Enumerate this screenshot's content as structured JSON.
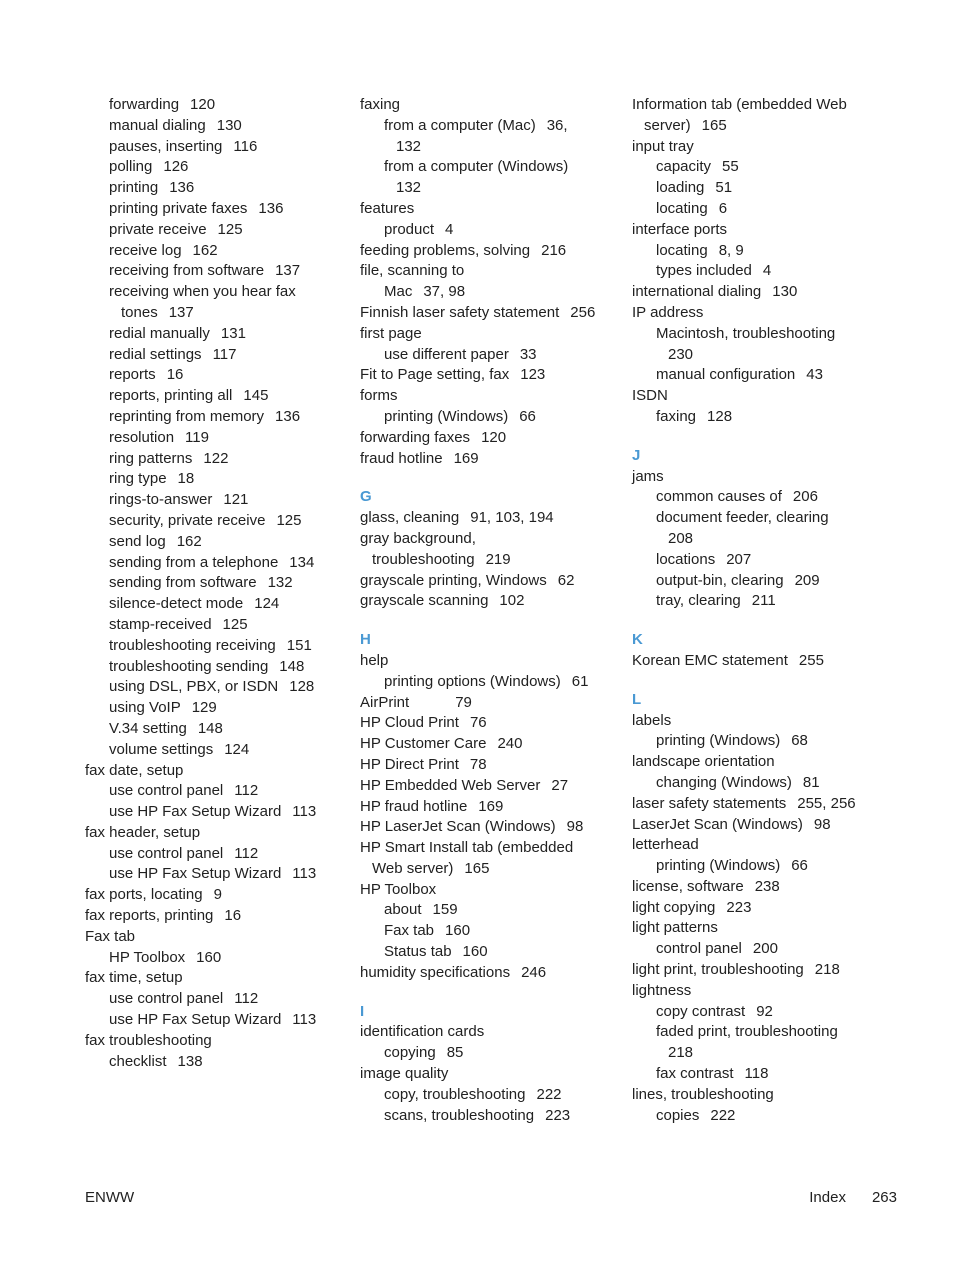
{
  "document": {
    "kind": "printer manual index page",
    "accent_color": "#4a99d3",
    "text_color": "#212121"
  },
  "footer": {
    "left": "ENWW",
    "index_label": "Index",
    "page_number": "263"
  },
  "columns": [
    {
      "lines": [
        {
          "t": "e",
          "i": 1,
          "l": "forwarding",
          "p": "120"
        },
        {
          "t": "e",
          "i": 1,
          "l": "manual dialing",
          "p": "130"
        },
        {
          "t": "e",
          "i": 1,
          "l": "pauses, inserting",
          "p": "116"
        },
        {
          "t": "e",
          "i": 1,
          "l": "polling",
          "p": "126"
        },
        {
          "t": "e",
          "i": 1,
          "l": "printing",
          "p": "136"
        },
        {
          "t": "e",
          "i": 1,
          "l": "printing private faxes",
          "p": "136"
        },
        {
          "t": "e",
          "i": 1,
          "l": "private receive",
          "p": "125"
        },
        {
          "t": "e",
          "i": 1,
          "l": "receive log",
          "p": "162"
        },
        {
          "t": "e",
          "i": 1,
          "l": "receiving from software",
          "p": "137"
        },
        {
          "t": "e",
          "i": 1,
          "l": "receiving when you hear fax",
          "p": ""
        },
        {
          "t": "e",
          "i": 1,
          "h": true,
          "l": "tones",
          "p": "137"
        },
        {
          "t": "e",
          "i": 1,
          "l": "redial manually",
          "p": "131"
        },
        {
          "t": "e",
          "i": 1,
          "l": "redial settings",
          "p": "117"
        },
        {
          "t": "e",
          "i": 1,
          "l": "reports",
          "p": "16"
        },
        {
          "t": "e",
          "i": 1,
          "l": "reports, printing all",
          "p": "145"
        },
        {
          "t": "e",
          "i": 1,
          "l": "reprinting from memory",
          "p": "136"
        },
        {
          "t": "e",
          "i": 1,
          "l": "resolution",
          "p": "119"
        },
        {
          "t": "e",
          "i": 1,
          "l": "ring patterns",
          "p": "122"
        },
        {
          "t": "e",
          "i": 1,
          "l": "ring type",
          "p": "18"
        },
        {
          "t": "e",
          "i": 1,
          "l": "rings-to-answer",
          "p": "121"
        },
        {
          "t": "e",
          "i": 1,
          "l": "security, private receive",
          "p": "125"
        },
        {
          "t": "e",
          "i": 1,
          "l": "send log",
          "p": "162"
        },
        {
          "t": "e",
          "i": 1,
          "l": "sending from a telephone",
          "p": "134"
        },
        {
          "t": "e",
          "i": 1,
          "l": "sending from software",
          "p": "132"
        },
        {
          "t": "e",
          "i": 1,
          "l": "silence-detect mode",
          "p": "124"
        },
        {
          "t": "e",
          "i": 1,
          "l": "stamp-received",
          "p": "125"
        },
        {
          "t": "e",
          "i": 1,
          "l": "troubleshooting receiving",
          "p": "151"
        },
        {
          "t": "e",
          "i": 1,
          "l": "troubleshooting sending",
          "p": "148"
        },
        {
          "t": "e",
          "i": 1,
          "l": "using DSL, PBX, or ISDN",
          "p": "128"
        },
        {
          "t": "e",
          "i": 1,
          "l": "using VoIP",
          "p": "129"
        },
        {
          "t": "e",
          "i": 1,
          "l": "V.34 setting",
          "p": "148"
        },
        {
          "t": "e",
          "i": 1,
          "l": "volume settings",
          "p": "124"
        },
        {
          "t": "e",
          "i": 0,
          "l": "fax date, setup",
          "p": ""
        },
        {
          "t": "e",
          "i": 1,
          "l": "use control panel",
          "p": "112"
        },
        {
          "t": "e",
          "i": 1,
          "l": "use HP Fax Setup Wizard",
          "p": "113"
        },
        {
          "t": "e",
          "i": 0,
          "l": "fax header, setup",
          "p": ""
        },
        {
          "t": "e",
          "i": 1,
          "l": "use control panel",
          "p": "112"
        },
        {
          "t": "e",
          "i": 1,
          "l": "use HP Fax Setup Wizard",
          "p": "113"
        },
        {
          "t": "e",
          "i": 0,
          "l": "fax ports, locating",
          "p": "9"
        },
        {
          "t": "e",
          "i": 0,
          "l": "fax reports, printing",
          "p": "16"
        },
        {
          "t": "e",
          "i": 0,
          "l": "Fax tab",
          "p": ""
        },
        {
          "t": "e",
          "i": 1,
          "l": "HP Toolbox",
          "p": "160"
        },
        {
          "t": "e",
          "i": 0,
          "l": "fax time, setup",
          "p": ""
        },
        {
          "t": "e",
          "i": 1,
          "l": "use control panel",
          "p": "112"
        },
        {
          "t": "e",
          "i": 1,
          "l": "use HP Fax Setup Wizard",
          "p": "113"
        },
        {
          "t": "e",
          "i": 0,
          "l": "fax troubleshooting",
          "p": ""
        },
        {
          "t": "e",
          "i": 1,
          "l": "checklist",
          "p": "138"
        }
      ]
    },
    {
      "lines": [
        {
          "t": "e",
          "i": 0,
          "l": "faxing",
          "p": ""
        },
        {
          "t": "e",
          "i": 1,
          "l": "from a computer (Mac)",
          "p": "36,"
        },
        {
          "t": "e",
          "i": 1,
          "h": true,
          "l": "132",
          "p": ""
        },
        {
          "t": "e",
          "i": 1,
          "l": "from a computer (Windows)",
          "p": ""
        },
        {
          "t": "e",
          "i": 1,
          "h": true,
          "l": "132",
          "p": ""
        },
        {
          "t": "e",
          "i": 0,
          "l": "features",
          "p": ""
        },
        {
          "t": "e",
          "i": 1,
          "l": "product",
          "p": "4"
        },
        {
          "t": "e",
          "i": 0,
          "l": "feeding problems, solving",
          "p": "216"
        },
        {
          "t": "e",
          "i": 0,
          "l": "file, scanning to",
          "p": ""
        },
        {
          "t": "e",
          "i": 1,
          "l": "Mac",
          "p": "37, 98"
        },
        {
          "t": "e",
          "i": 0,
          "l": "Finnish laser safety statement",
          "p": "256"
        },
        {
          "t": "e",
          "i": 0,
          "l": "first page",
          "p": ""
        },
        {
          "t": "e",
          "i": 1,
          "l": "use different paper",
          "p": "33"
        },
        {
          "t": "e",
          "i": 0,
          "l": "Fit to Page setting, fax",
          "p": "123"
        },
        {
          "t": "e",
          "i": 0,
          "l": "forms",
          "p": ""
        },
        {
          "t": "e",
          "i": 1,
          "l": "printing (Windows)",
          "p": "66"
        },
        {
          "t": "e",
          "i": 0,
          "l": "forwarding faxes",
          "p": "120"
        },
        {
          "t": "e",
          "i": 0,
          "l": "fraud hotline",
          "p": "169"
        },
        {
          "t": "h",
          "l": "G"
        },
        {
          "t": "e",
          "i": 0,
          "l": "glass, cleaning",
          "p": "91, 103, 194"
        },
        {
          "t": "e",
          "i": 0,
          "l": "gray background,",
          "p": ""
        },
        {
          "t": "e",
          "i": 0,
          "h": true,
          "l": "troubleshooting",
          "p": "219"
        },
        {
          "t": "e",
          "i": 0,
          "l": "grayscale printing, Windows",
          "p": "62"
        },
        {
          "t": "e",
          "i": 0,
          "l": "grayscale scanning",
          "p": "102"
        },
        {
          "t": "h",
          "l": "H"
        },
        {
          "t": "e",
          "i": 0,
          "l": "help",
          "p": ""
        },
        {
          "t": "e",
          "i": 1,
          "l": "printing options (Windows)",
          "p": "61"
        },
        {
          "t": "e",
          "i": 0,
          "l": "AirPrint",
          "p": "79",
          "w": true
        },
        {
          "t": "e",
          "i": 0,
          "l": "HP Cloud Print",
          "p": "76"
        },
        {
          "t": "e",
          "i": 0,
          "l": "HP Customer Care",
          "p": "240"
        },
        {
          "t": "e",
          "i": 0,
          "l": "HP Direct Print",
          "p": "78"
        },
        {
          "t": "e",
          "i": 0,
          "l": "HP Embedded Web Server",
          "p": "27"
        },
        {
          "t": "e",
          "i": 0,
          "l": "HP fraud hotline",
          "p": "169"
        },
        {
          "t": "e",
          "i": 0,
          "l": "HP LaserJet Scan (Windows)",
          "p": "98"
        },
        {
          "t": "e",
          "i": 0,
          "l": "HP Smart Install tab (embedded",
          "p": ""
        },
        {
          "t": "e",
          "i": 0,
          "h": true,
          "l": "Web server)",
          "p": "165"
        },
        {
          "t": "e",
          "i": 0,
          "l": "HP Toolbox",
          "p": ""
        },
        {
          "t": "e",
          "i": 1,
          "l": "about",
          "p": "159"
        },
        {
          "t": "e",
          "i": 1,
          "l": "Fax tab",
          "p": "160"
        },
        {
          "t": "e",
          "i": 1,
          "l": "Status tab",
          "p": "160"
        },
        {
          "t": "e",
          "i": 0,
          "l": "humidity specifications",
          "p": "246"
        },
        {
          "t": "h",
          "l": "I"
        },
        {
          "t": "e",
          "i": 0,
          "l": "identification cards",
          "p": ""
        },
        {
          "t": "e",
          "i": 1,
          "l": "copying",
          "p": "85"
        },
        {
          "t": "e",
          "i": 0,
          "l": "image quality",
          "p": ""
        },
        {
          "t": "e",
          "i": 1,
          "l": "copy, troubleshooting",
          "p": "222"
        },
        {
          "t": "e",
          "i": 1,
          "l": "scans, troubleshooting",
          "p": "223"
        }
      ]
    },
    {
      "lines": [
        {
          "t": "e",
          "i": 0,
          "l": "Information tab (embedded Web",
          "p": ""
        },
        {
          "t": "e",
          "i": 0,
          "h": true,
          "l": "server)",
          "p": "165"
        },
        {
          "t": "e",
          "i": 0,
          "l": "input tray",
          "p": ""
        },
        {
          "t": "e",
          "i": 1,
          "l": "capacity",
          "p": "55"
        },
        {
          "t": "e",
          "i": 1,
          "l": "loading",
          "p": "51"
        },
        {
          "t": "e",
          "i": 1,
          "l": "locating",
          "p": "6"
        },
        {
          "t": "e",
          "i": 0,
          "l": "interface ports",
          "p": ""
        },
        {
          "t": "e",
          "i": 1,
          "l": "locating",
          "p": "8, 9"
        },
        {
          "t": "e",
          "i": 1,
          "l": "types included",
          "p": "4"
        },
        {
          "t": "e",
          "i": 0,
          "l": "international dialing",
          "p": "130"
        },
        {
          "t": "e",
          "i": 0,
          "l": "IP address",
          "p": ""
        },
        {
          "t": "e",
          "i": 1,
          "l": "Macintosh, troubleshooting",
          "p": ""
        },
        {
          "t": "e",
          "i": 1,
          "h": true,
          "l": "230",
          "p": ""
        },
        {
          "t": "e",
          "i": 1,
          "l": "manual configuration",
          "p": "43"
        },
        {
          "t": "e",
          "i": 0,
          "l": "ISDN",
          "p": ""
        },
        {
          "t": "e",
          "i": 1,
          "l": "faxing",
          "p": "128"
        },
        {
          "t": "h",
          "l": "J"
        },
        {
          "t": "e",
          "i": 0,
          "l": "jams",
          "p": ""
        },
        {
          "t": "e",
          "i": 1,
          "l": "common causes of",
          "p": "206"
        },
        {
          "t": "e",
          "i": 1,
          "l": "document feeder, clearing",
          "p": ""
        },
        {
          "t": "e",
          "i": 1,
          "h": true,
          "l": "208",
          "p": ""
        },
        {
          "t": "e",
          "i": 1,
          "l": "locations",
          "p": "207"
        },
        {
          "t": "e",
          "i": 1,
          "l": "output-bin, clearing",
          "p": "209"
        },
        {
          "t": "e",
          "i": 1,
          "l": "tray, clearing",
          "p": "211"
        },
        {
          "t": "h",
          "l": "K"
        },
        {
          "t": "e",
          "i": 0,
          "l": "Korean EMC statement",
          "p": "255"
        },
        {
          "t": "h",
          "l": "L"
        },
        {
          "t": "e",
          "i": 0,
          "l": "labels",
          "p": ""
        },
        {
          "t": "e",
          "i": 1,
          "l": "printing (Windows)",
          "p": "68"
        },
        {
          "t": "e",
          "i": 0,
          "l": "landscape orientation",
          "p": ""
        },
        {
          "t": "e",
          "i": 1,
          "l": "changing (Windows)",
          "p": "81"
        },
        {
          "t": "e",
          "i": 0,
          "l": "laser safety statements",
          "p": "255, 256"
        },
        {
          "t": "e",
          "i": 0,
          "l": "LaserJet Scan (Windows)",
          "p": "98"
        },
        {
          "t": "e",
          "i": 0,
          "l": "letterhead",
          "p": ""
        },
        {
          "t": "e",
          "i": 1,
          "l": "printing (Windows)",
          "p": "66"
        },
        {
          "t": "e",
          "i": 0,
          "l": "license, software",
          "p": "238"
        },
        {
          "t": "e",
          "i": 0,
          "l": "light copying",
          "p": "223"
        },
        {
          "t": "e",
          "i": 0,
          "l": "light patterns",
          "p": ""
        },
        {
          "t": "e",
          "i": 1,
          "l": "control panel",
          "p": "200"
        },
        {
          "t": "e",
          "i": 0,
          "l": "light print, troubleshooting",
          "p": "218"
        },
        {
          "t": "e",
          "i": 0,
          "l": "lightness",
          "p": ""
        },
        {
          "t": "e",
          "i": 1,
          "l": "copy contrast",
          "p": "92"
        },
        {
          "t": "e",
          "i": 1,
          "l": "faded print, troubleshooting",
          "p": ""
        },
        {
          "t": "e",
          "i": 1,
          "h": true,
          "l": "218",
          "p": ""
        },
        {
          "t": "e",
          "i": 1,
          "l": "fax contrast",
          "p": "118"
        },
        {
          "t": "e",
          "i": 0,
          "l": "lines, troubleshooting",
          "p": ""
        },
        {
          "t": "e",
          "i": 1,
          "l": "copies",
          "p": "222"
        }
      ]
    }
  ]
}
